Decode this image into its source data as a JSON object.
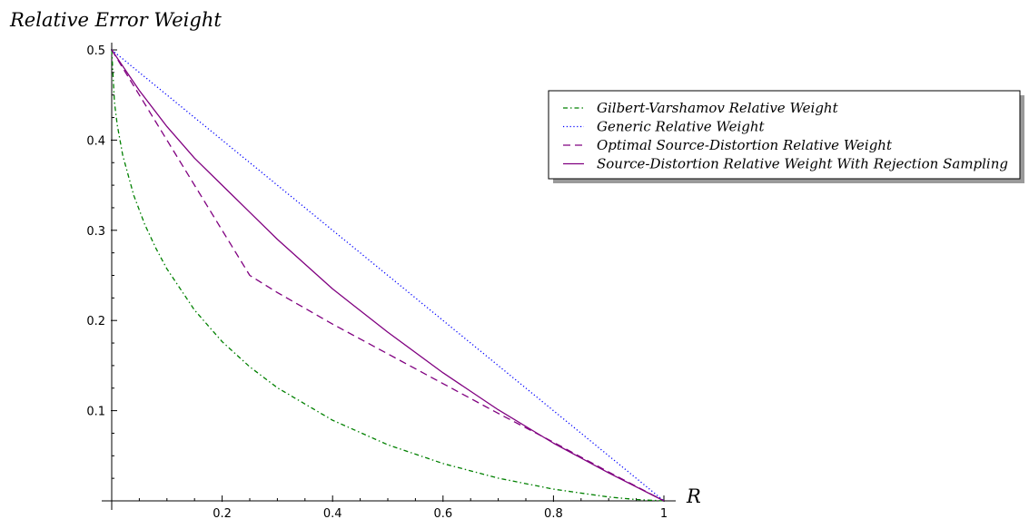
{
  "chart_data": {
    "type": "line",
    "xlabel": "R",
    "ylabel": "Relative Error Weight",
    "xlim": [
      0,
      1
    ],
    "ylim": [
      0,
      0.5
    ],
    "x_ticks": [
      0.2,
      0.4,
      0.6,
      0.8,
      1
    ],
    "x_tick_labels": [
      "0.2",
      "0.4",
      "0.6",
      "0.8",
      "1"
    ],
    "y_ticks": [
      0.1,
      0.2,
      0.3,
      0.4,
      0.5
    ],
    "y_tick_labels": [
      "0.1",
      "0.2",
      "0.3",
      "0.4",
      "0.5"
    ],
    "grid": false,
    "legend_position": "top-right",
    "series": [
      {
        "name": "Gilbert-Varshamov Relative Weight",
        "color": "#008000",
        "dash": "dashdot",
        "x": [
          0,
          0.005,
          0.01,
          0.02,
          0.04,
          0.06,
          0.08,
          0.1,
          0.15,
          0.2,
          0.25,
          0.3,
          0.4,
          0.5,
          0.6,
          0.7,
          0.8,
          0.9,
          0.95,
          1.0
        ],
        "y": [
          0.5,
          0.4418,
          0.4169,
          0.3831,
          0.3386,
          0.3063,
          0.2801,
          0.2572,
          0.2115,
          0.1765,
          0.1486,
          0.1254,
          0.0894,
          0.0622,
          0.0414,
          0.0252,
          0.013,
          0.0043,
          0.0015,
          0.0
        ]
      },
      {
        "name": "Generic Relative Weight",
        "color": "#0000ff",
        "dash": "dotted",
        "x": [
          0,
          1
        ],
        "y": [
          0.5,
          0.0
        ]
      },
      {
        "name": "Optimal Source-Distortion Relative Weight",
        "color": "#800080",
        "dash": "dashed",
        "x": [
          0,
          0.05,
          0.1,
          0.15,
          0.2,
          0.25,
          0.3,
          0.4,
          0.5,
          0.6,
          0.7,
          0.8,
          0.9,
          1.0
        ],
        "y": [
          0.5,
          0.45,
          0.4,
          0.35,
          0.3,
          0.25,
          0.231,
          0.196,
          0.163,
          0.13,
          0.097,
          0.065,
          0.032,
          0.0
        ]
      },
      {
        "name": "Source-Distortion Relative Weight With Rejection Sampling",
        "color": "#800080",
        "dash": "solid",
        "x": [
          0,
          0.05,
          0.1,
          0.15,
          0.2,
          0.25,
          0.3,
          0.4,
          0.5,
          0.6,
          0.7,
          0.8,
          0.9,
          1.0
        ],
        "y": [
          0.5,
          0.455,
          0.415,
          0.38,
          0.35,
          0.32,
          0.29,
          0.235,
          0.187,
          0.142,
          0.101,
          0.064,
          0.031,
          0.0
        ]
      }
    ]
  }
}
